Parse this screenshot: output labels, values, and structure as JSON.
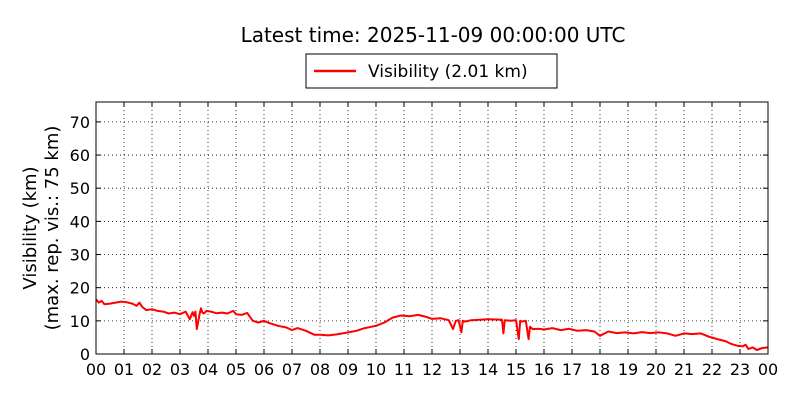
{
  "chart_data": {
    "type": "line",
    "title": "Latest time: 2025-11-09 00:00:00 UTC",
    "xlabel": "",
    "ylabel_lines": [
      "Visibility (km)",
      "(max. rep. vis.: 75 km)"
    ],
    "xlim": [
      0,
      24
    ],
    "ylim": [
      0,
      76
    ],
    "x_ticks": [
      0,
      1,
      2,
      3,
      4,
      5,
      6,
      7,
      8,
      9,
      10,
      11,
      12,
      13,
      14,
      15,
      16,
      17,
      18,
      19,
      20,
      21,
      22,
      23,
      24
    ],
    "x_tick_labels": [
      "00",
      "01",
      "02",
      "03",
      "04",
      "05",
      "06",
      "07",
      "08",
      "09",
      "10",
      "11",
      "12",
      "13",
      "14",
      "15",
      "16",
      "17",
      "18",
      "19",
      "20",
      "21",
      "22",
      "23",
      "00"
    ],
    "y_ticks": [
      0,
      10,
      20,
      30,
      40,
      50,
      60,
      70
    ],
    "grid": true,
    "legend_position": "top-center",
    "series": [
      {
        "name": "Visibility (2.01 km)",
        "color": "#ff0000",
        "x": [
          0.0,
          0.1,
          0.2,
          0.3,
          0.5,
          0.7,
          0.9,
          1.1,
          1.3,
          1.45,
          1.55,
          1.65,
          1.8,
          2.0,
          2.2,
          2.4,
          2.6,
          2.8,
          3.0,
          3.2,
          3.35,
          3.45,
          3.5,
          3.55,
          3.6,
          3.7,
          3.75,
          3.8,
          3.85,
          3.95,
          4.1,
          4.3,
          4.5,
          4.7,
          4.9,
          5.0,
          5.2,
          5.4,
          5.6,
          5.8,
          6.0,
          6.2,
          6.5,
          6.8,
          7.0,
          7.2,
          7.5,
          7.8,
          8.0,
          8.3,
          8.6,
          9.0,
          9.3,
          9.6,
          10.0,
          10.3,
          10.6,
          10.9,
          11.2,
          11.5,
          11.8,
          12.0,
          12.3,
          12.6,
          12.75,
          12.85,
          12.95,
          13.05,
          13.1,
          13.2,
          13.4,
          13.7,
          14.0,
          14.3,
          14.5,
          14.55,
          14.6,
          14.8,
          15.0,
          15.1,
          15.15,
          15.2,
          15.35,
          15.45,
          15.5,
          15.6,
          15.8,
          16.0,
          16.3,
          16.6,
          16.9,
          17.2,
          17.5,
          17.8,
          18.0,
          18.3,
          18.6,
          18.9,
          19.2,
          19.5,
          19.8,
          20.1,
          20.4,
          20.7,
          21.0,
          21.3,
          21.6,
          21.9,
          22.2,
          22.5,
          22.7,
          22.9,
          23.1,
          23.2,
          23.3,
          23.45,
          23.6,
          23.8,
          24.0
        ],
        "values": [
          16.5,
          15.5,
          16.0,
          15.0,
          15.2,
          15.5,
          15.8,
          15.6,
          15.2,
          14.5,
          15.5,
          14.2,
          13.2,
          13.5,
          13.0,
          12.8,
          12.2,
          12.5,
          12.0,
          12.8,
          10.5,
          12.6,
          11.5,
          12.8,
          7.5,
          12.0,
          13.8,
          12.5,
          12.2,
          13.0,
          12.8,
          12.3,
          12.5,
          12.2,
          13.0,
          12.0,
          11.8,
          12.4,
          10.0,
          9.5,
          10.0,
          9.3,
          8.5,
          8.0,
          7.2,
          7.8,
          7.0,
          5.8,
          5.8,
          5.6,
          5.9,
          6.5,
          7.0,
          7.8,
          8.5,
          9.5,
          11.0,
          11.6,
          11.4,
          11.8,
          11.2,
          10.6,
          10.8,
          10.2,
          7.5,
          10.0,
          10.2,
          6.5,
          10.0,
          9.8,
          10.2,
          10.3,
          10.5,
          10.4,
          10.3,
          6.2,
          10.2,
          10.0,
          10.2,
          4.5,
          10.0,
          9.8,
          10.0,
          4.5,
          8.2,
          7.5,
          7.6,
          7.4,
          7.8,
          7.2,
          7.6,
          7.0,
          7.2,
          6.8,
          5.5,
          6.8,
          6.3,
          6.5,
          6.2,
          6.6,
          6.3,
          6.5,
          6.2,
          5.5,
          6.2,
          6.0,
          6.2,
          5.2,
          4.5,
          3.8,
          3.0,
          2.5,
          2.3,
          2.8,
          1.5,
          2.0,
          1.2,
          1.8,
          2.0
        ]
      }
    ]
  }
}
